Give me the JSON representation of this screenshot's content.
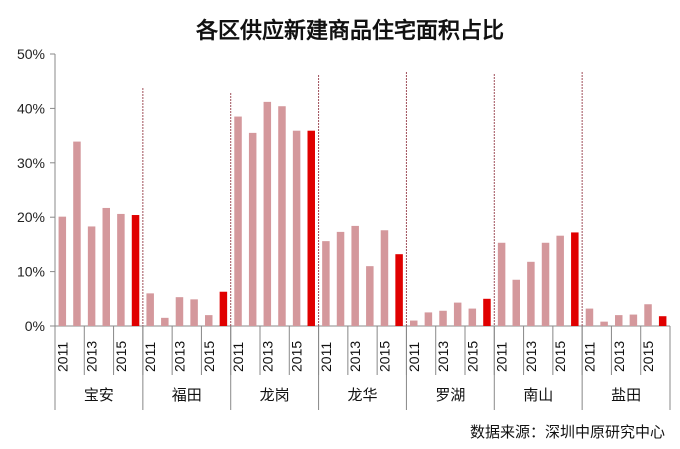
{
  "chart_data": {
    "type": "bar",
    "title": "各区供应新建商品住宅面积占比",
    "source": "数据来源：深圳中原研究中心",
    "xlabel": "",
    "ylabel": "",
    "ylim": [
      0,
      50
    ],
    "yticks": [
      "0%",
      "10%",
      "20%",
      "30%",
      "40%",
      "50%"
    ],
    "years": [
      "2011",
      "2012",
      "2013",
      "2014",
      "2015",
      "2016"
    ],
    "year_labels_shown": [
      "2011",
      "2013",
      "2015"
    ],
    "colors": {
      "past": "#d4989c",
      "latest": "#e00000",
      "divider": "#a0505a",
      "axis": "#888888"
    },
    "groups": [
      {
        "name": "宝安",
        "values": [
          20.1,
          33.9,
          18.3,
          21.7,
          20.6,
          20.4
        ]
      },
      {
        "name": "福田",
        "values": [
          6.0,
          1.5,
          5.3,
          4.9,
          2.0,
          6.3
        ]
      },
      {
        "name": "龙岗",
        "values": [
          38.5,
          35.5,
          41.2,
          40.4,
          35.9,
          35.9
        ]
      },
      {
        "name": "龙华",
        "values": [
          15.6,
          17.3,
          18.4,
          11.0,
          17.6,
          13.2
        ]
      },
      {
        "name": "罗湖",
        "values": [
          1.0,
          2.5,
          2.8,
          4.3,
          3.2,
          5.0
        ]
      },
      {
        "name": "南山",
        "values": [
          15.3,
          8.5,
          11.8,
          15.3,
          16.6,
          17.2
        ]
      },
      {
        "name": "盐田",
        "values": [
          3.2,
          0.8,
          2.0,
          2.1,
          4.0,
          1.8
        ]
      }
    ]
  }
}
